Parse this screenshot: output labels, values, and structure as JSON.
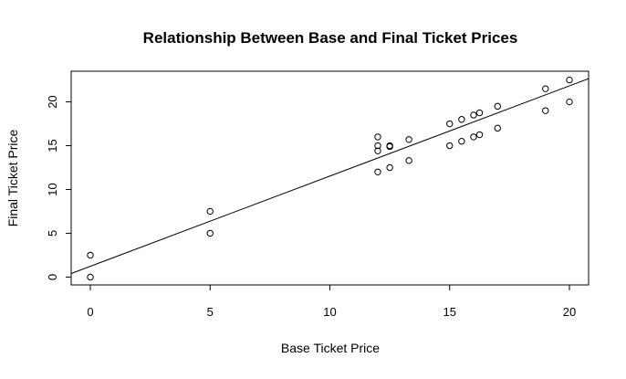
{
  "chart_data": {
    "type": "scatter",
    "title": "Relationship Between Base and Final Ticket Prices",
    "xlabel": "Base Ticket Price",
    "ylabel": "Final Ticket Price",
    "xlim": [
      -0.8,
      20.8
    ],
    "ylim": [
      -0.9,
      23.5
    ],
    "x_ticks": [
      0,
      5,
      10,
      15,
      20
    ],
    "y_ticks": [
      0,
      5,
      10,
      15,
      20
    ],
    "grid": false,
    "points": [
      {
        "x": 0,
        "y": 0
      },
      {
        "x": 0,
        "y": 2.5
      },
      {
        "x": 5,
        "y": 5
      },
      {
        "x": 5,
        "y": 7.5
      },
      {
        "x": 12,
        "y": 12
      },
      {
        "x": 12,
        "y": 14.4
      },
      {
        "x": 12,
        "y": 15
      },
      {
        "x": 12,
        "y": 16
      },
      {
        "x": 12.5,
        "y": 12.5
      },
      {
        "x": 12.5,
        "y": 14.9
      },
      {
        "x": 12.5,
        "y": 15
      },
      {
        "x": 13.3,
        "y": 13.3
      },
      {
        "x": 13.3,
        "y": 15.7
      },
      {
        "x": 15,
        "y": 15
      },
      {
        "x": 15,
        "y": 17.5
      },
      {
        "x": 15.5,
        "y": 15.5
      },
      {
        "x": 15.5,
        "y": 18
      },
      {
        "x": 16,
        "y": 16
      },
      {
        "x": 16,
        "y": 18.5
      },
      {
        "x": 16.25,
        "y": 16.25
      },
      {
        "x": 16.25,
        "y": 18.75
      },
      {
        "x": 17,
        "y": 17
      },
      {
        "x": 17,
        "y": 19.5
      },
      {
        "x": 19,
        "y": 19
      },
      {
        "x": 19,
        "y": 21.5
      },
      {
        "x": 20,
        "y": 20
      },
      {
        "x": 20,
        "y": 22.5
      }
    ],
    "fit_line": {
      "intercept": 1.23,
      "slope": 1.03
    }
  }
}
